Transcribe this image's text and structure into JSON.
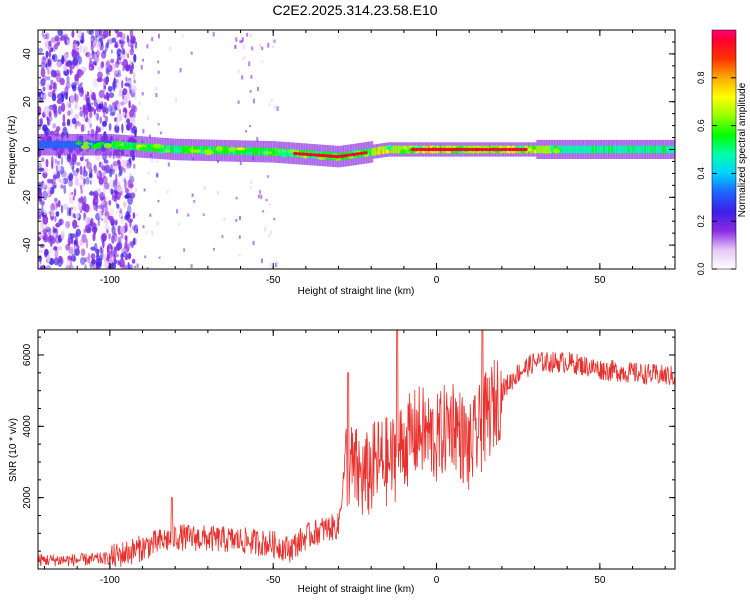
{
  "title": "C2E2.2025.314.23.58.E10",
  "chart_data": [
    {
      "type": "heatmap",
      "title": "C2E2.2025.314.23.58.E10",
      "xlabel": "Height of straight line (km)",
      "ylabel": "Frequency (Hz)",
      "xlim": [
        -122,
        73
      ],
      "ylim": [
        -50,
        50
      ],
      "x_ticks": [
        -100,
        -50,
        0,
        50
      ],
      "y_ticks": [
        -40,
        -20,
        0,
        20,
        40
      ],
      "grid": false,
      "colorbar": {
        "label": "Normalized spectral amplitude",
        "range": [
          0.0,
          1.0
        ],
        "ticks": [
          0.0,
          0.2,
          0.4,
          0.6,
          0.8
        ],
        "tick_labels": [
          "0.0",
          "0.2",
          "0.4",
          "0.6",
          "0.8"
        ],
        "colormap": "rainbow (white-violet-blue-cyan-green-yellow-orange-red-magenta)"
      },
      "ridge": {
        "description": "Narrow high-amplitude band near 0 Hz",
        "frequency_trend": [
          {
            "x": -122,
            "y": 2
          },
          {
            "x": -100,
            "y": 2
          },
          {
            "x": -80,
            "y": 0
          },
          {
            "x": -50,
            "y": -1
          },
          {
            "x": -30,
            "y": -3
          },
          {
            "x": -15,
            "y": 0
          },
          {
            "x": 0,
            "y": 0
          },
          {
            "x": 73,
            "y": 0
          }
        ],
        "peak_amplitude_at": [
          -36,
          -29,
          0,
          5,
          20
        ]
      }
    },
    {
      "type": "line",
      "title": "",
      "xlabel": "Height of straight line (km)",
      "ylabel": "SNR (10 * v/v)",
      "xlim": [
        -122,
        73
      ],
      "ylim": [
        0,
        6700
      ],
      "x_ticks": [
        -100,
        -50,
        0,
        50
      ],
      "y_ticks": [
        2000,
        4000,
        6000
      ],
      "grid": false,
      "series": [
        {
          "color": "#e8302c",
          "envelope": [
            {
              "x": -122,
              "y": 250
            },
            {
              "x": -110,
              "y": 250
            },
            {
              "x": -100,
              "y": 300
            },
            {
              "x": -90,
              "y": 600
            },
            {
              "x": -80,
              "y": 900
            },
            {
              "x": -70,
              "y": 850
            },
            {
              "x": -60,
              "y": 800
            },
            {
              "x": -50,
              "y": 700
            },
            {
              "x": -45,
              "y": 550
            },
            {
              "x": -40,
              "y": 900
            },
            {
              "x": -35,
              "y": 1100
            },
            {
              "x": -30,
              "y": 1200
            },
            {
              "x": -28,
              "y": 3000
            },
            {
              "x": -22,
              "y": 2500
            },
            {
              "x": -18,
              "y": 3000
            },
            {
              "x": -14,
              "y": 3000
            },
            {
              "x": -10,
              "y": 3500
            },
            {
              "x": -5,
              "y": 3900
            },
            {
              "x": 0,
              "y": 3600
            },
            {
              "x": 5,
              "y": 4200
            },
            {
              "x": 10,
              "y": 3300
            },
            {
              "x": 15,
              "y": 4200
            },
            {
              "x": 20,
              "y": 5000
            },
            {
              "x": 25,
              "y": 5500
            },
            {
              "x": 30,
              "y": 5800
            },
            {
              "x": 40,
              "y": 5800
            },
            {
              "x": 50,
              "y": 5600
            },
            {
              "x": 60,
              "y": 5500
            },
            {
              "x": 73,
              "y": 5400
            }
          ],
          "peaks": [
            {
              "x": -81,
              "y": 2000
            },
            {
              "x": -27,
              "y": 5500
            },
            {
              "x": -12,
              "y": 6700
            },
            {
              "x": 14,
              "y": 6700
            }
          ]
        }
      ]
    }
  ]
}
